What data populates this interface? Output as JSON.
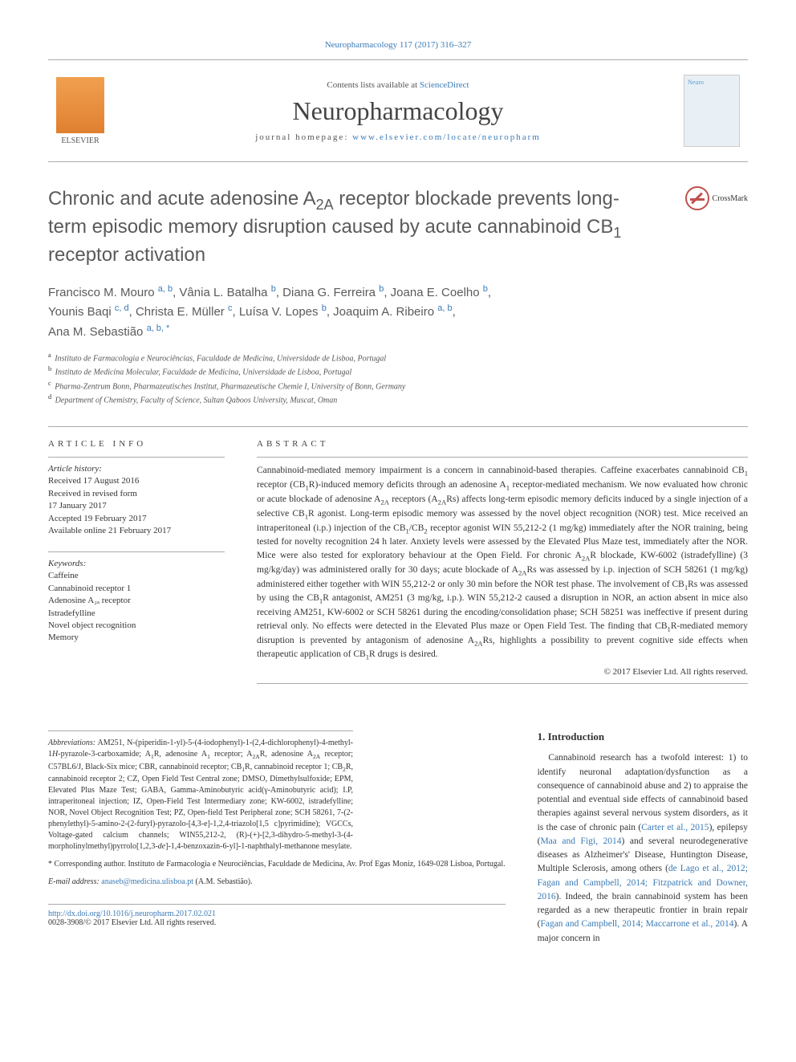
{
  "header": {
    "citation": "Neuropharmacology 117 (2017) 316–327",
    "contents_prefix": "Contents lists available at ",
    "contents_link": "ScienceDirect",
    "journal_name": "Neuropharmacology",
    "homepage_prefix": "journal homepage: ",
    "homepage_url": "www.elsevier.com/locate/neuropharm",
    "publisher": "ELSEVIER",
    "crossmark": "CrossMark"
  },
  "article": {
    "title_html": "Chronic and acute adenosine A<sub>2A</sub> receptor blockade prevents long-term episodic memory disruption caused by acute cannabinoid CB<sub>1</sub> receptor activation",
    "authors": [
      {
        "name": "Francisco M. Mouro",
        "affil": "a, b"
      },
      {
        "name": "Vânia L. Batalha",
        "affil": "b"
      },
      {
        "name": "Diana G. Ferreira",
        "affil": "b"
      },
      {
        "name": "Joana E. Coelho",
        "affil": "b"
      },
      {
        "name": "Younis Baqi",
        "affil": "c, d"
      },
      {
        "name": "Christa E. Müller",
        "affil": "c"
      },
      {
        "name": "Luísa V. Lopes",
        "affil": "b"
      },
      {
        "name": "Joaquim A. Ribeiro",
        "affil": "a, b"
      },
      {
        "name": "Ana M. Sebastião",
        "affil": "a, b, *"
      }
    ],
    "affiliations": [
      {
        "key": "a",
        "text": "Instituto de Farmacologia e Neurociências, Faculdade de Medicina, Universidade de Lisboa, Portugal"
      },
      {
        "key": "b",
        "text": "Instituto de Medicina Molecular, Faculdade de Medicina, Universidade de Lisboa, Portugal"
      },
      {
        "key": "c",
        "text": "Pharma-Zentrum Bonn, Pharmazeutisches Institut, Pharmazeutische Chemie I, University of Bonn, Germany"
      },
      {
        "key": "d",
        "text": "Department of Chemistry, Faculty of Science, Sultan Qaboos University, Muscat, Oman"
      }
    ]
  },
  "article_info": {
    "heading": "ARTICLE INFO",
    "history_label": "Article history:",
    "history": [
      "Received 17 August 2016",
      "Received in revised form",
      "17 January 2017",
      "Accepted 19 February 2017",
      "Available online 21 February 2017"
    ],
    "keywords_label": "Keywords:",
    "keywords": [
      "Caffeine",
      "Cannabinoid receptor 1",
      "Adenosine A₂ₐ receptor",
      "Istradefylline",
      "Novel object recognition",
      "Memory"
    ]
  },
  "abstract": {
    "heading": "ABSTRACT",
    "text_html": "Cannabinoid-mediated memory impairment is a concern in cannabinoid-based therapies. Caffeine exacerbates cannabinoid CB<sub>1</sub> receptor (CB<sub>1</sub>R)-induced memory deficits through an adenosine A<sub>1</sub> receptor-mediated mechanism. We now evaluated how chronic or acute blockade of adenosine A<sub>2A</sub> receptors (A<sub>2A</sub>Rs) affects long-term episodic memory deficits induced by a single injection of a selective CB<sub>1</sub>R agonist. Long-term episodic memory was assessed by the novel object recognition (NOR) test. Mice received an intraperitoneal (i.p.) injection of the CB<sub>1</sub>/CB<sub>2</sub> receptor agonist WIN 55,212-2 (1 mg/kg) immediately after the NOR training, being tested for novelty recognition 24 h later. Anxiety levels were assessed by the Elevated Plus Maze test, immediately after the NOR. Mice were also tested for exploratory behaviour at the Open Field. For chronic A<sub>2A</sub>R blockade, KW-6002 (istradefylline) (3 mg/kg/day) was administered orally for 30 days; acute blockade of A<sub>2A</sub>Rs was assessed by i.p. injection of SCH 58261 (1 mg/kg) administered either together with WIN 55,212-2 or only 30 min before the NOR test phase. The involvement of CB<sub>1</sub>Rs was assessed by using the CB<sub>1</sub>R antagonist, AM251 (3 mg/kg, i.p.). WIN 55,212-2 caused a disruption in NOR, an action absent in mice also receiving AM251, KW-6002 or SCH 58261 during the encoding/consolidation phase; SCH 58251 was ineffective if present during retrieval only. No effects were detected in the Elevated Plus maze or Open Field Test. The finding that CB<sub>1</sub>R-mediated memory disruption is prevented by antagonism of adenosine A<sub>2A</sub>Rs, highlights a possibility to prevent cognitive side effects when therapeutic application of CB<sub>1</sub>R drugs is desired.",
    "copyright": "© 2017 Elsevier Ltd. All rights reserved."
  },
  "footnotes": {
    "abbrev_label": "Abbreviations:",
    "abbrev_text_html": "AM251, N-(piperidin-1-yl)-5-(4-iodophenyl)-1-(2,4-dichlorophenyl)-4-methyl-1<i>H</i>-pyrazole-3-carboxamide; A<sub>1</sub>R, adenosine A<sub>1</sub> receptor; A<sub>2A</sub>R, adenosine A<sub>2A</sub> receptor; C57BL6/J, Black-Six mice; CBR, cannabinoid receptor; CB<sub>1</sub>R, cannabinoid receptor 1; CB<sub>2</sub>R, cannabinoid receptor 2; CZ, Open Field Test Central zone; DMSO, Dimethylsulfoxide; EPM, Elevated Plus Maze Test; GABA, Gamma-Aminobutyric acid(γ-Aminobutyric acid); I.P, intraperitoneal injection; IZ, Open-Field Test Intermediary zone; KW-6002, istradefylline; NOR, Novel Object Recognition Test; PZ, Open-field Test Peripheral zone; SCH 58261, 7-(2-phenylethyl)-5-amino-2-(2-furyl)-pyrazolo-[4,3-e]-1,2,4-triazolo[1,5 c]pyrimidine); VGCCs, Voltage-gated calcium channels; WIN55,212-2, (R)-(+)-[2,3-dihydro-5-methyl-3-(4-morpholinylmethyl)pyrrolo[1,2,3-<i>de</i>]-1,4-benzoxazin-6-yl]-1-naphthalyl-methanone mesylate.",
    "corr_label": "* Corresponding author.",
    "corr_text": "Instituto de Farmacologia e Neurociências, Faculdade de Medicina, Av. Prof Egas Moniz, 1649-028 Lisboa, Portugal.",
    "email_label": "E-mail address:",
    "email": "anaseb@medicina.ulisboa.pt",
    "email_name": "(A.M. Sebastião)."
  },
  "introduction": {
    "heading": "1. Introduction",
    "para1_pre": "Cannabinoid research has a twofold interest: 1) to identify neuronal adaptation/dysfunction as a consequence of cannabinoid abuse and 2) to appraise the potential and eventual side effects of cannabinoid based therapies against several nervous system disorders, as it is the case of chronic pain (",
    "cite1": "Carter et al., 2015",
    "para1_mid1": "), epilepsy (",
    "cite2": "Maa and Figi, 2014",
    "para1_mid2": ") and several neurodegenerative diseases as Alzheimer's' Disease, Huntington Disease, Multiple Sclerosis, among others (",
    "cite3": "de Lago et al., 2012; Fagan and Campbell, 2014; Fitzpatrick and Downer, 2016",
    "para1_mid3": "). Indeed, the brain cannabinoid system has been regarded as a new therapeutic frontier in brain repair (",
    "cite4": "Fagan and Campbell, 2014; Maccarrone et al., 2014",
    "para1_end": "). A major concern in"
  },
  "doi": {
    "url": "http://dx.doi.org/10.1016/j.neuropharm.2017.02.021",
    "issn_line": "0028-3908/© 2017 Elsevier Ltd. All rights reserved."
  },
  "colors": {
    "link": "#3a7ab5",
    "text": "#333333",
    "heading": "#5a5a5a",
    "rule": "#aaaaaa"
  }
}
